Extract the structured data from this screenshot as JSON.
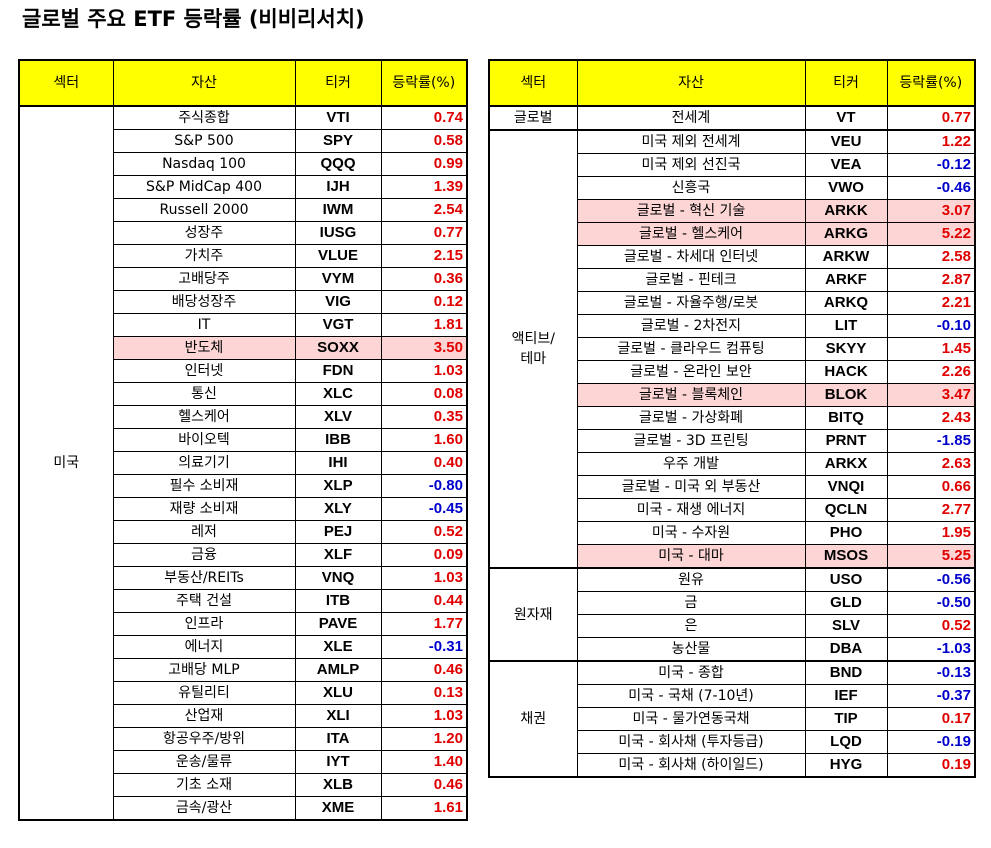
{
  "title": "글로벌 주요 ETF 등락률 (비비리서치)",
  "headers": {
    "sector": "섹터",
    "asset": "자산",
    "ticker": "티커",
    "change": "등락률(%)"
  },
  "left_table": {
    "sector": "미국",
    "rows": [
      {
        "asset": "주식종합",
        "ticker": "VTI",
        "change": "0.74"
      },
      {
        "asset": "S&P 500",
        "ticker": "SPY",
        "change": "0.58"
      },
      {
        "asset": "Nasdaq 100",
        "ticker": "QQQ",
        "change": "0.99"
      },
      {
        "asset": "S&P MidCap 400",
        "ticker": "IJH",
        "change": "1.39"
      },
      {
        "asset": "Russell 2000",
        "ticker": "IWM",
        "change": "2.54"
      },
      {
        "asset": "성장주",
        "ticker": "IUSG",
        "change": "0.77"
      },
      {
        "asset": "가치주",
        "ticker": "VLUE",
        "change": "2.15"
      },
      {
        "asset": "고배당주",
        "ticker": "VYM",
        "change": "0.36"
      },
      {
        "asset": "배당성장주",
        "ticker": "VIG",
        "change": "0.12"
      },
      {
        "asset": "IT",
        "ticker": "VGT",
        "change": "1.81"
      },
      {
        "asset": "반도체",
        "ticker": "SOXX",
        "change": "3.50",
        "highlight": true
      },
      {
        "asset": "인터넷",
        "ticker": "FDN",
        "change": "1.03"
      },
      {
        "asset": "통신",
        "ticker": "XLC",
        "change": "0.08"
      },
      {
        "asset": "헬스케어",
        "ticker": "XLV",
        "change": "0.35"
      },
      {
        "asset": "바이오텍",
        "ticker": "IBB",
        "change": "1.60"
      },
      {
        "asset": "의료기기",
        "ticker": "IHI",
        "change": "0.40"
      },
      {
        "asset": "필수 소비재",
        "ticker": "XLP",
        "change": "-0.80"
      },
      {
        "asset": "재량 소비재",
        "ticker": "XLY",
        "change": "-0.45"
      },
      {
        "asset": "레저",
        "ticker": "PEJ",
        "change": "0.52"
      },
      {
        "asset": "금융",
        "ticker": "XLF",
        "change": "0.09"
      },
      {
        "asset": "부동산/REITs",
        "ticker": "VNQ",
        "change": "1.03"
      },
      {
        "asset": "주택 건설",
        "ticker": "ITB",
        "change": "0.44"
      },
      {
        "asset": "인프라",
        "ticker": "PAVE",
        "change": "1.77"
      },
      {
        "asset": "에너지",
        "ticker": "XLE",
        "change": "-0.31"
      },
      {
        "asset": "고배당 MLP",
        "ticker": "AMLP",
        "change": "0.46"
      },
      {
        "asset": "유틸리티",
        "ticker": "XLU",
        "change": "0.13"
      },
      {
        "asset": "산업재",
        "ticker": "XLI",
        "change": "1.03"
      },
      {
        "asset": "항공우주/방위",
        "ticker": "ITA",
        "change": "1.20"
      },
      {
        "asset": "운송/물류",
        "ticker": "IYT",
        "change": "1.40"
      },
      {
        "asset": "기초 소재",
        "ticker": "XLB",
        "change": "0.46"
      },
      {
        "asset": "금속/광산",
        "ticker": "XME",
        "change": "1.61"
      }
    ]
  },
  "right_table": {
    "groups": [
      {
        "sector": "글로벌",
        "rows": [
          {
            "asset": "전세계",
            "ticker": "VT",
            "change": "0.77"
          }
        ]
      },
      {
        "sector": "액티브/\n테마",
        "rows": [
          {
            "asset": "미국 제외 전세계",
            "ticker": "VEU",
            "change": "1.22"
          },
          {
            "asset": "미국 제외 선진국",
            "ticker": "VEA",
            "change": "-0.12"
          },
          {
            "asset": "신흥국",
            "ticker": "VWO",
            "change": "-0.46"
          },
          {
            "asset": "글로벌 - 혁신 기술",
            "ticker": "ARKK",
            "change": "3.07",
            "highlight": true
          },
          {
            "asset": "글로벌 - 헬스케어",
            "ticker": "ARKG",
            "change": "5.22",
            "highlight": true
          },
          {
            "asset": "글로벌 - 차세대 인터넷",
            "ticker": "ARKW",
            "change": "2.58"
          },
          {
            "asset": "글로벌 - 핀테크",
            "ticker": "ARKF",
            "change": "2.87"
          },
          {
            "asset": "글로벌 - 자율주행/로봇",
            "ticker": "ARKQ",
            "change": "2.21"
          },
          {
            "asset": "글로벌 - 2차전지",
            "ticker": "LIT",
            "change": "-0.10"
          },
          {
            "asset": "글로벌 - 클라우드 컴퓨팅",
            "ticker": "SKYY",
            "change": "1.45"
          },
          {
            "asset": "글로벌 - 온라인 보안",
            "ticker": "HACK",
            "change": "2.26"
          },
          {
            "asset": "글로벌 - 블록체인",
            "ticker": "BLOK",
            "change": "3.47",
            "highlight": true
          },
          {
            "asset": "글로벌 - 가상화폐",
            "ticker": "BITQ",
            "change": "2.43"
          },
          {
            "asset": "글로벌 - 3D 프린팅",
            "ticker": "PRNT",
            "change": "-1.85"
          },
          {
            "asset": "우주 개발",
            "ticker": "ARKX",
            "change": "2.63"
          },
          {
            "asset": "글로벌 - 미국 외 부동산",
            "ticker": "VNQI",
            "change": "0.66"
          },
          {
            "asset": "미국 - 재생 에너지",
            "ticker": "QCLN",
            "change": "2.77"
          },
          {
            "asset": "미국 - 수자원",
            "ticker": "PHO",
            "change": "1.95"
          },
          {
            "asset": "미국 - 대마",
            "ticker": "MSOS",
            "change": "5.25",
            "highlight": true
          }
        ]
      },
      {
        "sector": "원자재",
        "rows": [
          {
            "asset": "원유",
            "ticker": "USO",
            "change": "-0.56"
          },
          {
            "asset": "금",
            "ticker": "GLD",
            "change": "-0.50"
          },
          {
            "asset": "은",
            "ticker": "SLV",
            "change": "0.52"
          },
          {
            "asset": "농산물",
            "ticker": "DBA",
            "change": "-1.03"
          }
        ]
      },
      {
        "sector": "채권",
        "rows": [
          {
            "asset": "미국 - 종합",
            "ticker": "BND",
            "change": "-0.13"
          },
          {
            "asset": "미국 - 국채 (7-10년)",
            "ticker": "IEF",
            "change": "-0.37"
          },
          {
            "asset": "미국 - 물가연동국채",
            "ticker": "TIP",
            "change": "0.17"
          },
          {
            "asset": "미국 - 회사채 (투자등급)",
            "ticker": "LQD",
            "change": "-0.19"
          },
          {
            "asset": "미국 - 회사채 (하이일드)",
            "ticker": "HYG",
            "change": "0.19"
          }
        ]
      }
    ]
  },
  "colors": {
    "header_bg": "#ffff00",
    "highlight_bg": "#fcd5d4",
    "positive": "#e00000",
    "negative": "#0000cc"
  }
}
